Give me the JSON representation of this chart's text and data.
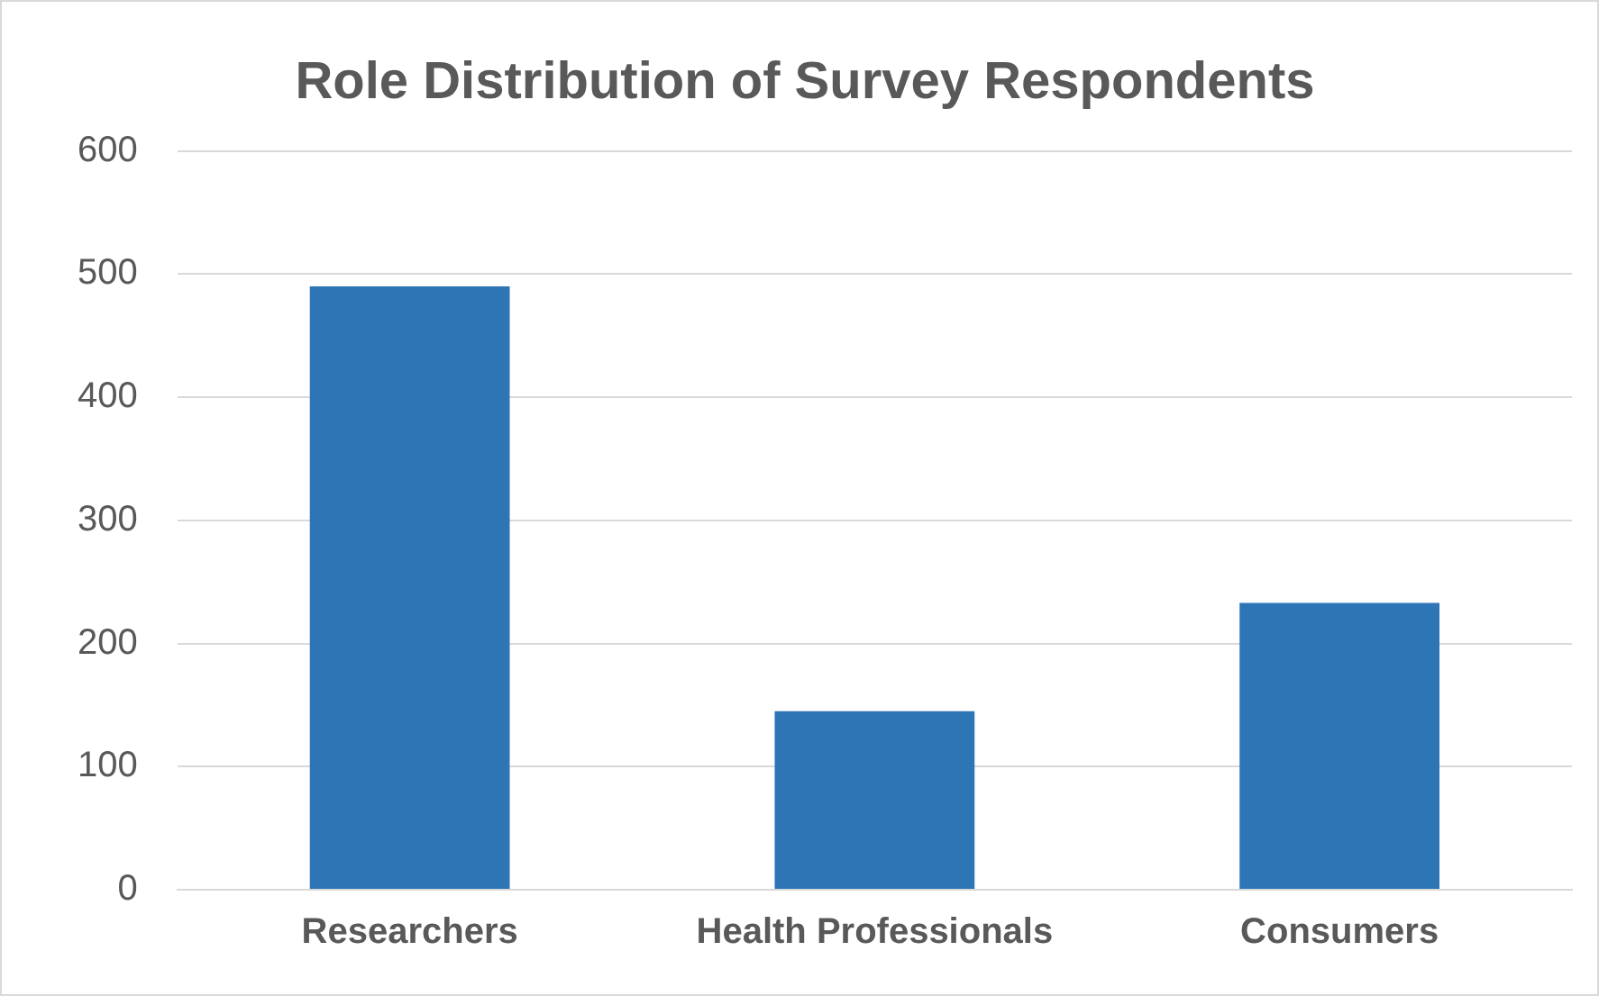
{
  "chart_data": {
    "type": "bar",
    "title": "Role Distribution of Survey Respondents",
    "categories": [
      "Researchers",
      "Health Professionals",
      "Consumers"
    ],
    "values": [
      490,
      145,
      233
    ],
    "color": "#2e75b6",
    "ylim": [
      0,
      600
    ],
    "yticks": [
      0,
      100,
      200,
      300,
      400,
      500,
      600
    ],
    "grid": "y"
  }
}
